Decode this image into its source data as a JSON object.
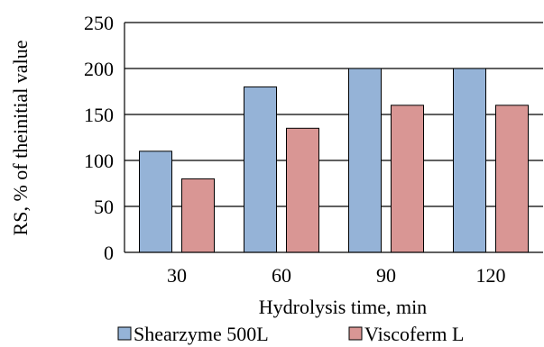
{
  "chart_data": {
    "type": "bar",
    "categories": [
      "30",
      "60",
      "90",
      "120"
    ],
    "series": [
      {
        "name": "Shearzyme 500L",
        "values": [
          110,
          180,
          200,
          200
        ],
        "color": "#95b3d7"
      },
      {
        "name": "Viscoferm L",
        "values": [
          80,
          135,
          160,
          160
        ],
        "color": "#d99694"
      }
    ],
    "xlabel": "Hydrolysis time, min",
    "ylabel": "RS, % of theinitial value",
    "ylim": [
      0,
      250
    ],
    "yticks": [
      0,
      50,
      100,
      150,
      200,
      250
    ],
    "grid": true,
    "legend_position": "bottom"
  }
}
